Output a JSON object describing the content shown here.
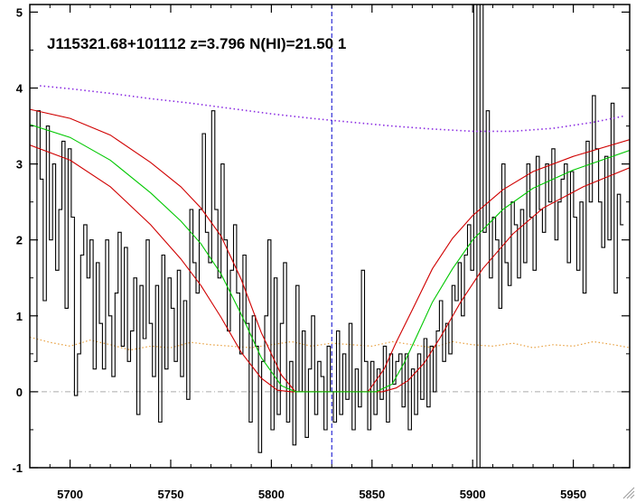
{
  "chart_data": {
    "type": "line",
    "title": "J115321.68+101112 z=3.796 N(HI)=21.50 1",
    "xlabel": "",
    "ylabel": "",
    "xlim": [
      5680,
      5978
    ],
    "ylim": [
      -1,
      5.1
    ],
    "x_ticks": [
      5700,
      5750,
      5800,
      5850,
      5900,
      5950
    ],
    "y_ticks": [
      -1,
      0,
      1,
      2,
      3,
      4,
      5
    ],
    "grid": false,
    "legend": "none",
    "reference_lines": {
      "center_x": 5830,
      "zero_y": 0
    },
    "colors": {
      "flux": "#000000",
      "error": "#e8a040",
      "continuum": "#8a2be2",
      "model": "#00c800",
      "bounds": "#d00000",
      "center_line": "#0000cc",
      "zero_line": "#aaaaaa"
    },
    "series": [
      {
        "key": "continuum",
        "x": [
          5685,
          5700,
          5720,
          5740,
          5760,
          5780,
          5800,
          5820,
          5840,
          5860,
          5880,
          5900,
          5920,
          5940,
          5960,
          5975
        ],
        "values": [
          4.03,
          3.99,
          3.93,
          3.86,
          3.8,
          3.73,
          3.66,
          3.6,
          3.55,
          3.5,
          3.46,
          3.43,
          3.43,
          3.47,
          3.55,
          3.63
        ]
      },
      {
        "key": "model",
        "x": [
          5680,
          5700,
          5720,
          5740,
          5755,
          5765,
          5775,
          5785,
          5795,
          5805,
          5812,
          5820,
          5840,
          5852,
          5860,
          5866,
          5872,
          5880,
          5890,
          5900,
          5915,
          5930,
          5950,
          5978
        ],
        "values": [
          3.52,
          3.35,
          3.05,
          2.62,
          2.25,
          1.95,
          1.55,
          1.02,
          0.45,
          0.08,
          0.0,
          0.0,
          0.0,
          0.0,
          0.1,
          0.38,
          0.72,
          1.18,
          1.62,
          2.0,
          2.4,
          2.68,
          2.92,
          3.18
        ]
      },
      {
        "key": "upper_bound",
        "x": [
          5680,
          5700,
          5720,
          5740,
          5755,
          5765,
          5775,
          5785,
          5795,
          5805,
          5812,
          5820,
          5840,
          5848,
          5856,
          5862,
          5870,
          5880,
          5890,
          5900,
          5915,
          5930,
          5950,
          5978
        ],
        "values": [
          3.72,
          3.6,
          3.38,
          3.02,
          2.7,
          2.42,
          2.05,
          1.48,
          0.78,
          0.22,
          0.0,
          0.0,
          0.0,
          0.0,
          0.3,
          0.65,
          1.08,
          1.62,
          2.02,
          2.32,
          2.66,
          2.9,
          3.1,
          3.32
        ]
      },
      {
        "key": "lower_bound",
        "x": [
          5680,
          5700,
          5720,
          5740,
          5755,
          5765,
          5775,
          5785,
          5795,
          5803,
          5810,
          5820,
          5840,
          5855,
          5862,
          5868,
          5876,
          5884,
          5894,
          5905,
          5920,
          5935,
          5955,
          5978
        ],
        "values": [
          3.25,
          3.05,
          2.7,
          2.2,
          1.75,
          1.4,
          0.98,
          0.52,
          0.18,
          0.02,
          0.0,
          0.0,
          0.0,
          0.0,
          0.05,
          0.15,
          0.38,
          0.72,
          1.18,
          1.62,
          2.08,
          2.42,
          2.7,
          2.95
        ]
      },
      {
        "key": "error",
        "x": [
          5680,
          5690,
          5700,
          5710,
          5720,
          5730,
          5740,
          5750,
          5760,
          5770,
          5780,
          5790,
          5800,
          5810,
          5820,
          5830,
          5840,
          5850,
          5860,
          5870,
          5880,
          5890,
          5900,
          5910,
          5920,
          5930,
          5940,
          5950,
          5960,
          5970,
          5978
        ],
        "values": [
          0.72,
          0.65,
          0.6,
          0.68,
          0.62,
          0.55,
          0.6,
          0.58,
          0.65,
          0.62,
          0.6,
          0.58,
          0.62,
          0.66,
          0.6,
          0.64,
          0.62,
          0.6,
          0.66,
          0.62,
          0.58,
          0.66,
          0.62,
          0.6,
          0.64,
          0.58,
          0.62,
          0.6,
          0.66,
          0.62,
          0.58
        ]
      },
      {
        "key": "flux",
        "x_start": 5682,
        "x_step": 1.55,
        "values": [
          0.4,
          3.7,
          2.8,
          1.2,
          3.5,
          2.0,
          3.0,
          1.6,
          2.4,
          3.3,
          1.1,
          3.2,
          2.3,
          -0.05,
          0.5,
          1.8,
          2.2,
          1.5,
          2.0,
          0.3,
          1.7,
          0.9,
          0.3,
          2.0,
          1.0,
          0.2,
          1.3,
          2.1,
          0.6,
          1.9,
          0.4,
          0.8,
          1.5,
          -0.3,
          1.4,
          0.7,
          2.0,
          0.9,
          0.2,
          1.4,
          -0.4,
          1.8,
          0.3,
          1.5,
          1.1,
          0.4,
          1.6,
          0.2,
          1.2,
          -0.1,
          2.4,
          1.7,
          1.3,
          2.4,
          3.4,
          2.1,
          1.7,
          3.7,
          2.4,
          1.5,
          3.0,
          2.0,
          0.8,
          1.6,
          2.2,
          1.3,
          0.5,
          1.8,
          0.9,
          -0.4,
          1.0,
          0.6,
          -0.8,
          0.4,
          1.0,
          2.0,
          -0.5,
          1.5,
          -0.3,
          0.9,
          1.7,
          -0.4,
          0.4,
          -0.7,
          1.4,
          0.0,
          0.8,
          -0.6,
          0.3,
          1.0,
          -0.3,
          0.4,
          0.2,
          -0.5,
          0.6,
          0.0,
          -0.4,
          0.8,
          -0.3,
          0.5,
          -0.1,
          0.9,
          -0.5,
          0.3,
          -0.2,
          1.6,
          0.4,
          -0.5,
          0.4,
          -0.3,
          0.3,
          -0.1,
          0.6,
          -0.4,
          0.5,
          0.1,
          0.4,
          0.5,
          -0.2,
          0.5,
          -0.5,
          0.3,
          -0.3,
          0.5,
          -0.1,
          0.7,
          -0.2,
          0.6,
          0.0,
          0.8,
          1.2,
          0.4,
          0.9,
          0.5,
          1.4,
          1.2,
          1.7,
          1.0,
          1.8,
          2.2,
          1.6,
          6.3,
          -1.1,
          5.1,
          2.1,
          3.7,
          1.5,
          2.3,
          2.0,
          1.1,
          3.0,
          1.7,
          1.4,
          2.5,
          2.2,
          1.5,
          2.4,
          1.7,
          3.0,
          2.3,
          1.6,
          3.1,
          2.4,
          2.1,
          3.0,
          2.5,
          3.2,
          2.0,
          2.5,
          2.8,
          3.0,
          1.7,
          2.9,
          2.3,
          1.6,
          2.5,
          1.3,
          3.3,
          2.5,
          3.9,
          3.2,
          2.5,
          1.9,
          3.1,
          2.0,
          3.8,
          1.3,
          2.6,
          2.2
        ]
      }
    ]
  }
}
